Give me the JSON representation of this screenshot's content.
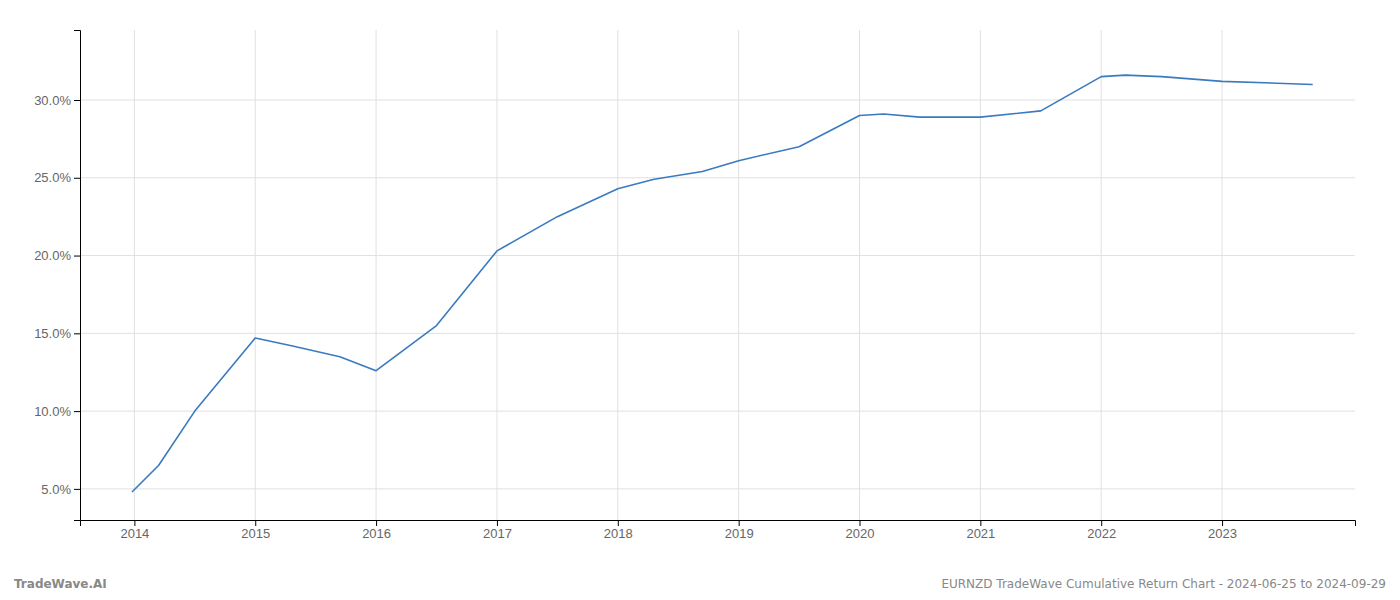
{
  "chart_data": {
    "type": "line",
    "x": [
      2013.98,
      2014.2,
      2014.5,
      2015.0,
      2015.3,
      2015.7,
      2016.0,
      2016.5,
      2017.0,
      2017.5,
      2018.0,
      2018.3,
      2018.7,
      2019.0,
      2019.5,
      2020.0,
      2020.2,
      2020.5,
      2021.0,
      2021.5,
      2022.0,
      2022.2,
      2022.5,
      2023.0,
      2023.75
    ],
    "values": [
      4.8,
      6.5,
      10.0,
      14.7,
      14.2,
      13.5,
      12.6,
      15.5,
      20.3,
      22.5,
      24.3,
      24.9,
      25.4,
      26.1,
      27.0,
      29.0,
      29.1,
      28.9,
      28.9,
      29.3,
      31.5,
      31.6,
      31.5,
      31.2,
      31.0
    ],
    "color": "#3a7abf",
    "xlim": [
      2013.55,
      2024.1
    ],
    "xticks": [
      2014,
      2015,
      2016,
      2017,
      2018,
      2019,
      2020,
      2021,
      2022,
      2023
    ],
    "ylim": [
      3.0,
      34.5
    ],
    "yticks": [
      {
        "value": 5.0,
        "label": "5.0%"
      },
      {
        "value": 10.0,
        "label": "10.0%"
      },
      {
        "value": 15.0,
        "label": "15.0%"
      },
      {
        "value": 20.0,
        "label": "20.0%"
      },
      {
        "value": 25.0,
        "label": "25.0%"
      },
      {
        "value": 30.0,
        "label": "30.0%"
      }
    ],
    "grid": true,
    "annotations": [
      "TradeWave.AI",
      "EURNZD TradeWave Cumulative Return Chart - 2024-06-25 to 2024-09-29"
    ]
  }
}
